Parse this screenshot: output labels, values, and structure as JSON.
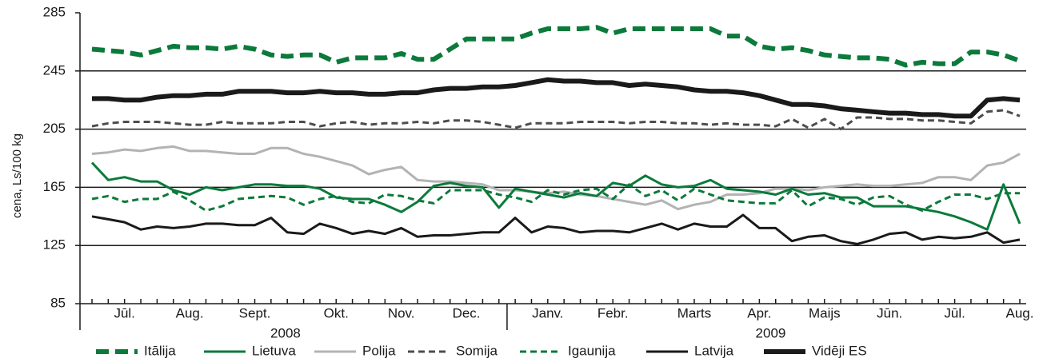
{
  "chart_data": {
    "type": "line",
    "y_label": "cena, Ls/100 kg",
    "categories": [
      null,
      null,
      "Jūl.",
      null,
      null,
      null,
      "Aug.",
      null,
      null,
      null,
      "Sept.",
      null,
      null,
      null,
      null,
      "Okt.",
      null,
      null,
      null,
      "Nov.",
      null,
      null,
      null,
      "Dec.",
      null,
      null,
      null,
      null,
      "Janv.",
      null,
      null,
      null,
      "Febr.",
      null,
      null,
      null,
      null,
      "Marts",
      null,
      null,
      null,
      "Apr.",
      null,
      null,
      null,
      "Maijs",
      null,
      null,
      null,
      "Jūn.",
      null,
      null,
      null,
      "Jūl.",
      null,
      null,
      null,
      "Aug."
    ],
    "year_labels": [
      "2008",
      "2009"
    ],
    "ylim": [
      85,
      285
    ],
    "yticks": [
      85,
      125,
      165,
      205,
      245,
      285
    ],
    "grid": true,
    "series": [
      {
        "name": "Itālija",
        "color": "#0b7a3b",
        "style": "dashed",
        "bold": true,
        "values": [
          260,
          259,
          258,
          256,
          259,
          262,
          261,
          261,
          260,
          262,
          260,
          256,
          255,
          256,
          256,
          251,
          254,
          254,
          254,
          257,
          253,
          253,
          260,
          267,
          267,
          267,
          267,
          271,
          274,
          274,
          274,
          275,
          271,
          274,
          274,
          274,
          274,
          274,
          274,
          269,
          269,
          262,
          260,
          261,
          259,
          256,
          255,
          254,
          254,
          253,
          249,
          251,
          250,
          250,
          258,
          258,
          256,
          252
        ]
      },
      {
        "name": "Lietuva",
        "color": "#0b7a3b",
        "style": "solid",
        "bold": false,
        "values": [
          182,
          170,
          172,
          169,
          169,
          163,
          160,
          165,
          163,
          165,
          167,
          167,
          166,
          166,
          164,
          158,
          157,
          157,
          153,
          148,
          155,
          166,
          168,
          166,
          165,
          151,
          164,
          162,
          160,
          158,
          161,
          159,
          168,
          166,
          173,
          167,
          165,
          166,
          170,
          164,
          163,
          162,
          160,
          164,
          160,
          161,
          158,
          158,
          152,
          152,
          152,
          150,
          148,
          145,
          141,
          136,
          167,
          140
        ]
      },
      {
        "name": "Polija",
        "color": "#b3b3b3",
        "style": "solid",
        "bold": false,
        "values": [
          188,
          189,
          191,
          190,
          192,
          193,
          190,
          190,
          189,
          188,
          188,
          192,
          192,
          188,
          186,
          183,
          180,
          174,
          177,
          179,
          170,
          169,
          169,
          168,
          167,
          163,
          163,
          162,
          161,
          162,
          160,
          159,
          157,
          155,
          153,
          156,
          150,
          153,
          155,
          160,
          160,
          161,
          164,
          164,
          163,
          165,
          166,
          167,
          166,
          166,
          167,
          168,
          172,
          172,
          170,
          180,
          182,
          188
        ]
      },
      {
        "name": "Somija",
        "color": "#4d4d4d",
        "style": "dashed",
        "bold": false,
        "values": [
          207,
          209,
          210,
          210,
          210,
          209,
          208,
          208,
          210,
          209,
          209,
          209,
          210,
          210,
          207,
          209,
          210,
          208,
          209,
          209,
          210,
          209,
          211,
          211,
          210,
          208,
          206,
          209,
          209,
          209,
          210,
          210,
          210,
          209,
          210,
          210,
          209,
          209,
          208,
          209,
          208,
          208,
          207,
          212,
          206,
          212,
          205,
          213,
          213,
          212,
          212,
          211,
          211,
          210,
          209,
          217,
          218,
          214
        ]
      },
      {
        "name": "Igaunija",
        "color": "#0b7a3b",
        "style": "dashed",
        "bold": false,
        "values": [
          157,
          159,
          155,
          157,
          157,
          162,
          156,
          149,
          152,
          157,
          158,
          159,
          158,
          153,
          157,
          159,
          155,
          154,
          160,
          159,
          156,
          154,
          163,
          163,
          163,
          160,
          158,
          155,
          163,
          160,
          163,
          164,
          157,
          167,
          159,
          163,
          156,
          164,
          160,
          156,
          155,
          154,
          154,
          163,
          152,
          158,
          157,
          153,
          158,
          159,
          153,
          149,
          155,
          160,
          160,
          157,
          161,
          161
        ]
      },
      {
        "name": "Latvija",
        "color": "#1a1a1a",
        "style": "solid",
        "bold": false,
        "values": [
          145,
          143,
          141,
          136,
          138,
          137,
          138,
          140,
          140,
          139,
          139,
          144,
          134,
          133,
          140,
          137,
          133,
          135,
          133,
          137,
          131,
          132,
          132,
          133,
          134,
          134,
          144,
          134,
          138,
          137,
          134,
          135,
          135,
          134,
          137,
          140,
          136,
          140,
          138,
          138,
          146,
          137,
          137,
          128,
          131,
          132,
          128,
          126,
          129,
          133,
          134,
          129,
          131,
          130,
          131,
          134,
          127,
          129
        ]
      },
      {
        "name": "Vidēji ES",
        "color": "#1a1a1a",
        "style": "solid",
        "bold": true,
        "values": [
          226,
          226,
          225,
          225,
          227,
          228,
          228,
          229,
          229,
          231,
          231,
          231,
          230,
          230,
          231,
          230,
          230,
          229,
          229,
          230,
          230,
          232,
          233,
          233,
          234,
          234,
          235,
          237,
          239,
          238,
          238,
          237,
          237,
          235,
          236,
          235,
          234,
          232,
          231,
          231,
          230,
          228,
          225,
          222,
          222,
          221,
          219,
          218,
          217,
          216,
          216,
          215,
          215,
          214,
          214,
          225,
          226,
          225
        ]
      }
    ]
  }
}
